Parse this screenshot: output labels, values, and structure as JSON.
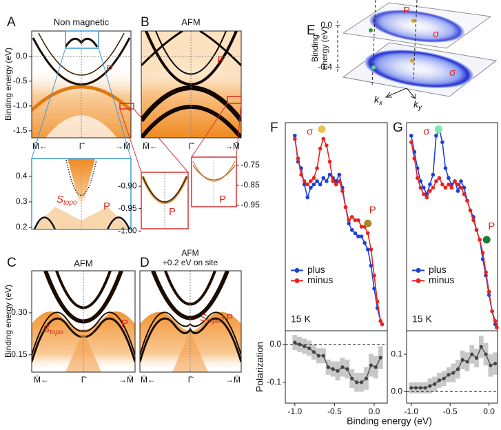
{
  "panel_a": {
    "label": "A",
    "title": "Non magnetic",
    "y_label": "Binding energy (eV)",
    "ylim": [
      -1.64,
      0.51
    ],
    "yticks": [
      {
        "value": 0,
        "label": "0.0"
      },
      -0.5,
      {
        "value": -1,
        "label": "-1.0"
      },
      -1.5
    ],
    "k_labels": [
      "M̄←",
      "Γ̄",
      "→M̄"
    ],
    "band_label": "P",
    "inset": {
      "ylim": [
        0.192,
        0.47
      ],
      "yticks": [
        0.4,
        0.3,
        0.2
      ],
      "surface_label": {
        "main": "S",
        "sub": "topo"
      },
      "band_label": "P"
    }
  },
  "panel_b": {
    "label": "B",
    "title": "AFM",
    "k_labels": [
      "M̄←",
      "Γ̄",
      "→M̄"
    ],
    "band_label": "P",
    "inset_left": {
      "ylim": [
        -0.995,
        -0.869
      ],
      "yticks": [
        {
          "value": -0.9,
          "label": "-0.90"
        },
        -0.95,
        {
          "value": -1,
          "label": "-1.00"
        }
      ],
      "band_label": "P"
    },
    "inset_right": {
      "ylim": [
        -0.957,
        -0.709
      ],
      "yticks": [
        -0.75,
        -0.85,
        -0.95
      ],
      "band_label": "P"
    }
  },
  "panel_c": {
    "label": "C",
    "title": "AFM",
    "y_label": "Binding energy (eV)",
    "ylim": [
      0.088,
      0.45
    ],
    "yticks": [
      {
        "value": 0.3,
        "label": "0.30"
      },
      0.15
    ],
    "k_labels": [
      "M̄←",
      "Γ̄",
      "→M̄"
    ],
    "surface_label": {
      "main": "S",
      "sub": "topo"
    },
    "band_label": "P"
  },
  "panel_d": {
    "label": "D",
    "title": [
      "AFM",
      "+0.2 eV on site"
    ],
    "k_labels": [
      "M̄←",
      "Γ̄",
      "→M̄"
    ],
    "surface_label": {
      "main": "S",
      "sub": "topo",
      "suffix": "+P"
    }
  },
  "panel_e": {
    "label": "E",
    "y_label": [
      "Binding",
      "energy (eV)"
    ],
    "ylim": [
      -0.4,
      0
    ],
    "yticks": [
      {
        "value": 0,
        "label": "0.0"
      },
      -0.4
    ],
    "band_label": "P",
    "sigma_upper": "σ",
    "sigma_lower": "σ",
    "kx": {
      "main": "k",
      "sub": "x"
    },
    "ky": {
      "main": "k",
      "sub": "y"
    }
  },
  "chart_data": [
    {
      "type": "line",
      "label": "F",
      "temperature": "15 K",
      "legend": "center left",
      "xlim": [
        -1.12,
        0.165
      ],
      "ylim": [
        0,
        0.64
      ],
      "x": [
        -1.0,
        -0.96,
        -0.92,
        -0.88,
        -0.84,
        -0.8,
        -0.76,
        -0.72,
        -0.68,
        -0.64,
        -0.6,
        -0.56,
        -0.52,
        -0.48,
        -0.44,
        -0.4,
        -0.36,
        -0.32,
        -0.28,
        -0.24,
        -0.2,
        -0.16,
        -0.12,
        -0.08,
        -0.04,
        0.0,
        0.04,
        0.08,
        0.1
      ],
      "series": [
        {
          "name": "plus",
          "color": "#1f3fd6",
          "values": [
            0.6,
            0.52,
            0.5,
            0.45,
            0.41,
            0.44,
            0.45,
            0.46,
            0.45,
            0.47,
            0.46,
            0.48,
            0.47,
            0.46,
            0.48,
            0.44,
            0.38,
            0.33,
            0.31,
            0.3,
            0.29,
            0.29,
            0.27,
            0.25,
            0.2,
            0.13,
            0.07,
            0.03,
            0.02
          ]
        },
        {
          "name": "minus",
          "color": "#e8231f",
          "values": [
            0.59,
            0.53,
            0.48,
            0.46,
            0.45,
            0.46,
            0.47,
            0.5,
            0.56,
            0.59,
            0.57,
            0.52,
            0.46,
            0.45,
            0.46,
            0.43,
            0.38,
            0.34,
            0.35,
            0.34,
            0.34,
            0.32,
            0.32,
            0.3,
            0.25,
            0.17,
            0.09,
            0.03,
            0.02
          ]
        }
      ],
      "markers": [
        {
          "label": "σ",
          "x": -0.66,
          "y": 0.62,
          "color": "#e6c453"
        },
        {
          "label": "P",
          "x": -0.08,
          "y": 0.33,
          "color": "#a8862a"
        }
      ]
    },
    {
      "type": "band",
      "xlim": [
        -1.12,
        0.165
      ],
      "ylim": [
        -0.155,
        0.036
      ],
      "xticks": [
        {
          "value": -1,
          "label": "-1.0"
        },
        -0.5,
        {
          "value": 0,
          "label": "0.0"
        }
      ],
      "yticks": [
        {
          "value": 0,
          "label": "0.0"
        },
        -0.1
      ],
      "y_label": "Polarization",
      "x_label": "Binding energy (eV)",
      "x": [
        -1.0,
        -0.94,
        -0.88,
        -0.82,
        -0.76,
        -0.7,
        -0.64,
        -0.58,
        -0.52,
        -0.46,
        -0.4,
        -0.34,
        -0.28,
        -0.22,
        -0.16,
        -0.1,
        -0.04,
        0.02,
        0.08
      ],
      "values": [
        0.005,
        0.0,
        -0.005,
        -0.01,
        -0.02,
        -0.03,
        -0.03,
        -0.06,
        -0.065,
        -0.07,
        -0.06,
        -0.065,
        -0.09,
        -0.1,
        -0.1,
        -0.09,
        -0.055,
        -0.06,
        -0.035
      ],
      "errors": [
        0.02,
        0.02,
        0.02,
        0.02,
        0.02,
        0.02,
        0.02,
        0.02,
        0.02,
        0.025,
        0.025,
        0.025,
        0.025,
        0.025,
        0.025,
        0.03,
        0.03,
        0.03,
        0.03
      ]
    },
    {
      "type": "line",
      "label": "G",
      "temperature": "15 K",
      "legend": "center left",
      "xlim": [
        -1.06,
        0.11
      ],
      "ylim": [
        0,
        0.64
      ],
      "x": [
        -1.0,
        -0.96,
        -0.92,
        -0.88,
        -0.84,
        -0.8,
        -0.76,
        -0.72,
        -0.68,
        -0.64,
        -0.6,
        -0.56,
        -0.52,
        -0.48,
        -0.44,
        -0.4,
        -0.36,
        -0.32,
        -0.28,
        -0.24,
        -0.2,
        -0.16,
        -0.12,
        -0.08,
        -0.04,
        0.0,
        0.04,
        0.08,
        0.1
      ],
      "series": [
        {
          "name": "plus",
          "color": "#1f3fd6",
          "values": [
            0.6,
            0.55,
            0.5,
            0.46,
            0.44,
            0.42,
            0.45,
            0.48,
            0.6,
            0.62,
            0.58,
            0.5,
            0.47,
            0.45,
            0.46,
            0.43,
            0.46,
            0.44,
            0.4,
            0.37,
            0.35,
            0.31,
            0.28,
            0.22,
            0.17,
            0.11,
            0.06,
            0.02,
            0.01
          ]
        },
        {
          "name": "minus",
          "color": "#e8231f",
          "values": [
            0.58,
            0.53,
            0.47,
            0.44,
            0.42,
            0.41,
            0.43,
            0.44,
            0.46,
            0.47,
            0.45,
            0.44,
            0.45,
            0.44,
            0.46,
            0.45,
            0.44,
            0.42,
            0.4,
            0.37,
            0.34,
            0.31,
            0.28,
            0.24,
            0.18,
            0.12,
            0.06,
            0.03,
            0.01
          ]
        }
      ],
      "markers": [
        {
          "label": "σ",
          "x": -0.65,
          "y": 0.62,
          "color": "#7de8b0"
        },
        {
          "label": "P",
          "x": -0.03,
          "y": 0.28,
          "color": "#1a7a3a"
        }
      ]
    },
    {
      "type": "band",
      "xlim": [
        -1.06,
        0.11
      ],
      "ylim": [
        -0.031,
        0.163
      ],
      "xticks": [
        {
          "value": -1,
          "label": "-1.0"
        },
        -0.5,
        {
          "value": 0,
          "label": "0.0"
        }
      ],
      "yticks": [
        0.1,
        {
          "value": 0,
          "label": "0.0"
        }
      ],
      "x": [
        -1.0,
        -0.94,
        -0.88,
        -0.82,
        -0.76,
        -0.7,
        -0.64,
        -0.58,
        -0.52,
        -0.46,
        -0.4,
        -0.34,
        -0.28,
        -0.22,
        -0.16,
        -0.1,
        -0.04,
        0.02,
        0.08
      ],
      "values": [
        0.01,
        0.01,
        0.01,
        0.01,
        0.015,
        0.02,
        0.03,
        0.035,
        0.045,
        0.05,
        0.06,
        0.085,
        0.08,
        0.1,
        0.09,
        0.12,
        0.1,
        0.07,
        0.075
      ],
      "errors": [
        0.015,
        0.015,
        0.015,
        0.015,
        0.02,
        0.02,
        0.02,
        0.02,
        0.02,
        0.025,
        0.025,
        0.025,
        0.025,
        0.025,
        0.025,
        0.03,
        0.03,
        0.03,
        0.03
      ]
    }
  ]
}
